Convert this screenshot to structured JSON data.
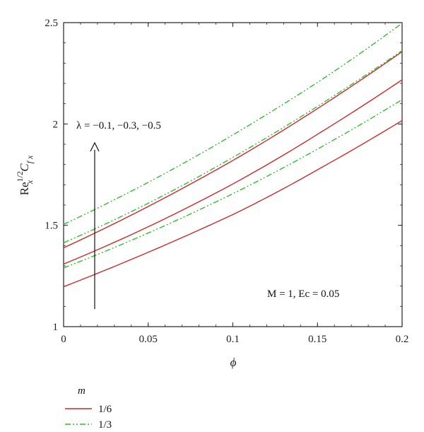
{
  "chart_data": {
    "type": "line",
    "xlabel": "ϕ",
    "ylabel": {
      "base": "Re",
      "base_sub": "x",
      "base_sup": "1/2",
      "main": "C",
      "main_sub": "f x"
    },
    "xlim": [
      0,
      0.2
    ],
    "ylim": [
      1,
      2.5
    ],
    "x_ticks": [
      "0",
      "0.05",
      "0.1",
      "0.15",
      "0.2"
    ],
    "y_ticks": [
      "1",
      "1.5",
      "2",
      "2.5"
    ],
    "grid": false,
    "legend": {
      "title": "m",
      "placement": "bottom-left",
      "entries": [
        {
          "label": "1/6",
          "color": "#cc2a2a",
          "dash": "solid"
        },
        {
          "label": "1/3",
          "color": "#33bb33",
          "dash": "dash-dot-dot"
        }
      ]
    },
    "annotations": {
      "lambda_text": "λ = −0.1, −0.3, −0.5",
      "params_text": "M = 1, Ec = 0.05"
    },
    "x": [
      0,
      0.05,
      0.1,
      0.15,
      0.2
    ],
    "series": [
      {
        "legend_entry": "1/6",
        "color": "#cc2a2a",
        "values": [
          1.197,
          1.367,
          1.553,
          1.774,
          2.017
        ]
      },
      {
        "legend_entry": "1/6",
        "color": "#cc2a2a",
        "values": [
          1.309,
          1.493,
          1.704,
          1.949,
          2.218
        ]
      },
      {
        "legend_entry": "1/6",
        "color": "#cc2a2a",
        "values": [
          1.389,
          1.593,
          1.82,
          2.076,
          2.357
        ]
      },
      {
        "legend_entry": "1/3",
        "color": "#33bb33",
        "values": [
          1.29,
          1.462,
          1.656,
          1.876,
          2.12
        ]
      },
      {
        "legend_entry": "1/3",
        "color": "#33bb33",
        "values": [
          1.414,
          1.609,
          1.835,
          2.087,
          2.362
        ]
      },
      {
        "legend_entry": "1/3",
        "color": "#33bb33",
        "values": [
          1.505,
          1.712,
          1.946,
          2.205,
          2.497
        ]
      }
    ]
  }
}
